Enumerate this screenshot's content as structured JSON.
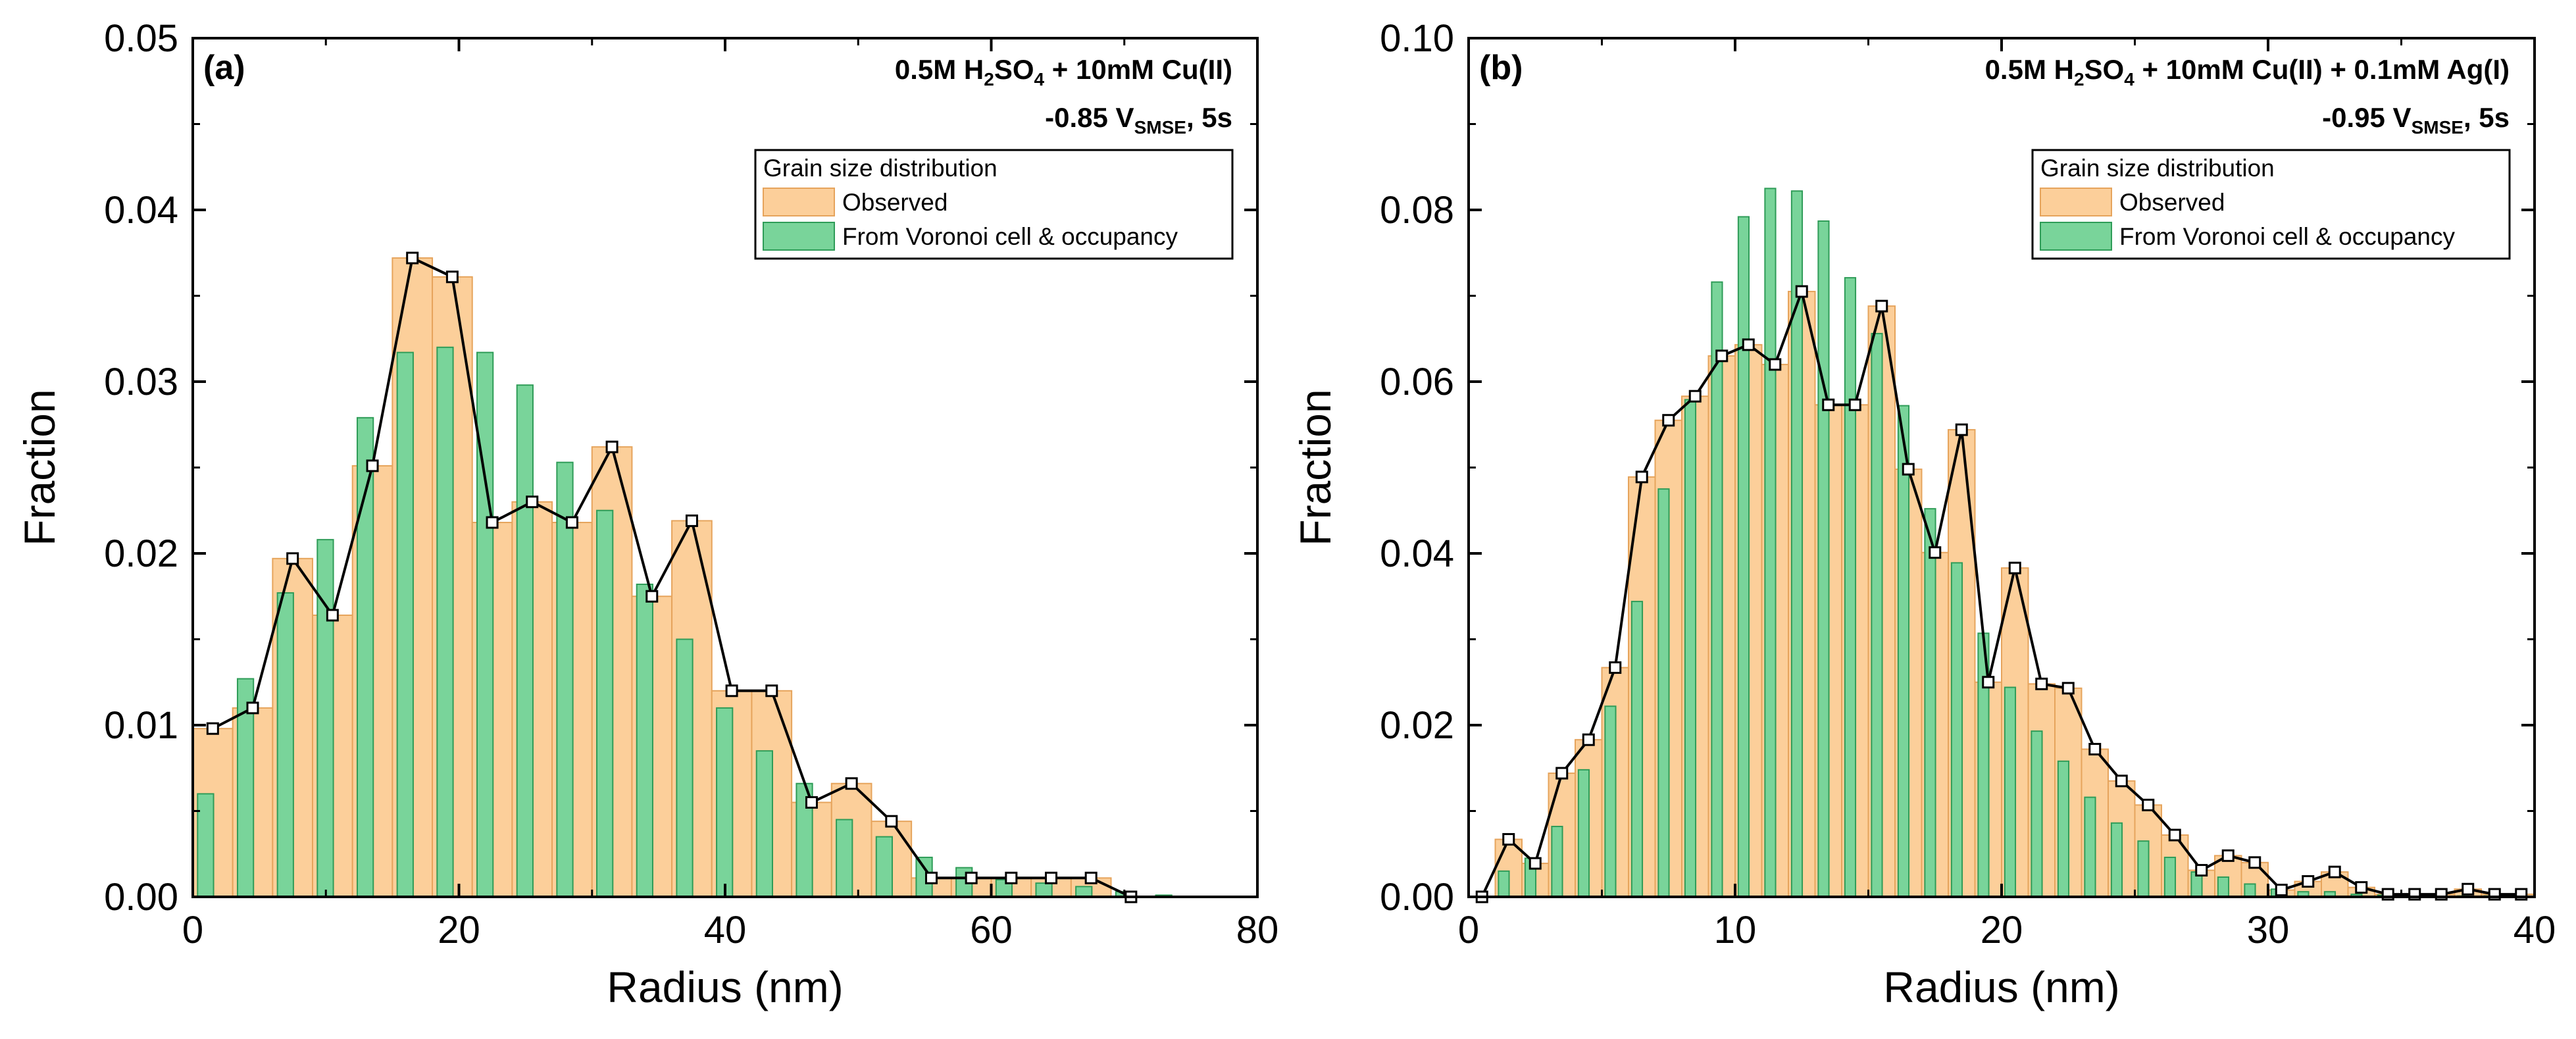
{
  "colors": {
    "observed_fill": "#fccf9a",
    "observed_edge": "#e6a45c",
    "voronoi_fill": "#79d49a",
    "voronoi_edge": "#2f9c58",
    "line": "#000000",
    "marker_fill": "#ffffff"
  },
  "chart_data": [
    {
      "type": "bar",
      "panel_label": "(a)",
      "condition": {
        "line1": {
          "a": "0.5M H",
          "b": "2",
          "c": "SO",
          "d": "4",
          "e": " + 10mM Cu(II)"
        },
        "line2": {
          "a": "-0.85 V",
          "b": "SMSE",
          "c": ", 5s"
        }
      },
      "xlabel": "Radius (nm)",
      "ylabel": "Fraction",
      "xlim": [
        0,
        80
      ],
      "ylim": [
        0,
        0.05
      ],
      "x_ticks": [
        "0",
        "20",
        "40",
        "60",
        "80"
      ],
      "y_ticks": [
        "0.00",
        "0.01",
        "0.02",
        "0.03",
        "0.04",
        "0.05"
      ],
      "bin_width": 3,
      "legend": {
        "title": "Grain size distribution",
        "entries": [
          "Observed",
          "From Voronoi cell & occupancy"
        ],
        "position": "top-right"
      },
      "series": [
        {
          "name": "Observed",
          "kind": "bar",
          "x": [
            1.5,
            4.5,
            7.5,
            10.5,
            13.5,
            16.5,
            19.5,
            22.5,
            25.5,
            28.5,
            31.5,
            34.5,
            37.5,
            40.5,
            43.5,
            46.5,
            49.5,
            52.5,
            55.5,
            58.5,
            61.5,
            64.5,
            67.5,
            70.5
          ],
          "values": [
            0.0098,
            0.011,
            0.0197,
            0.0164,
            0.0251,
            0.0372,
            0.0361,
            0.0218,
            0.023,
            0.0218,
            0.0262,
            0.0175,
            0.0219,
            0.012,
            0.012,
            0.0055,
            0.0066,
            0.0044,
            0.0011,
            0.0011,
            0.0011,
            0.0011,
            0.0011,
            0.0
          ]
        },
        {
          "name": "From Voronoi cell & occupancy",
          "kind": "bar",
          "x": [
            1.5,
            4.5,
            7.5,
            10.5,
            13.5,
            16.5,
            19.5,
            22.5,
            25.5,
            28.5,
            31.5,
            34.5,
            37.5,
            40.5,
            43.5,
            46.5,
            49.5,
            52.5,
            55.5,
            58.5,
            61.5,
            64.5,
            67.5,
            70.5,
            73.5
          ],
          "values": [
            0.006,
            0.0127,
            0.0177,
            0.0208,
            0.0279,
            0.0317,
            0.032,
            0.0317,
            0.0298,
            0.0253,
            0.0225,
            0.0182,
            0.015,
            0.011,
            0.0085,
            0.0066,
            0.0045,
            0.0035,
            0.0023,
            0.0017,
            0.001,
            0.0008,
            0.0006,
            0.0003,
            0.0001
          ]
        }
      ]
    },
    {
      "type": "bar",
      "panel_label": "(b)",
      "condition": {
        "line1": {
          "a": "0.5M H",
          "b": "2",
          "c": "SO",
          "d": "4",
          "e": " + 10mM Cu(II) + 0.1mM Ag(I)"
        },
        "line2": {
          "a": "-0.95 V",
          "b": "SMSE",
          "c": ", 5s"
        }
      },
      "xlabel": "Radius (nm)",
      "ylabel": "Fraction",
      "xlim": [
        0,
        40
      ],
      "ylim": [
        0,
        0.1
      ],
      "x_ticks": [
        "0",
        "10",
        "20",
        "30",
        "40"
      ],
      "y_ticks": [
        "0.00",
        "0.02",
        "0.04",
        "0.06",
        "0.08",
        "0.10"
      ],
      "bin_width": 1,
      "legend": {
        "title": "Grain size distribution",
        "entries": [
          "Observed",
          "From Voronoi cell & occupancy"
        ],
        "position": "top-right"
      },
      "series": [
        {
          "name": "Observed",
          "kind": "bar",
          "x": [
            0.5,
            1.5,
            2.5,
            3.5,
            4.5,
            5.5,
            6.5,
            7.5,
            8.5,
            9.5,
            10.5,
            11.5,
            12.5,
            13.5,
            14.5,
            15.5,
            16.5,
            17.5,
            18.5,
            19.5,
            20.5,
            21.5,
            22.5,
            23.5,
            24.5,
            25.5,
            26.5,
            27.5,
            28.5,
            29.5,
            30.5,
            31.5,
            32.5,
            33.5,
            34.5,
            35.5,
            36.5,
            37.5,
            38.5,
            39.5
          ],
          "values": [
            0.0,
            0.0067,
            0.0039,
            0.0144,
            0.0183,
            0.0267,
            0.0489,
            0.0555,
            0.0583,
            0.063,
            0.0643,
            0.062,
            0.0705,
            0.0573,
            0.0573,
            0.0688,
            0.0498,
            0.0401,
            0.0544,
            0.025,
            0.0383,
            0.0248,
            0.0243,
            0.0172,
            0.0135,
            0.0107,
            0.0072,
            0.0031,
            0.0048,
            0.004,
            0.0008,
            0.0018,
            0.0029,
            0.0011,
            0.0003,
            0.0003,
            0.0003,
            0.0009,
            0.0003,
            0.0003
          ]
        },
        {
          "name": "From Voronoi cell & occupancy",
          "kind": "bar",
          "x": [
            0.5,
            1.5,
            2.5,
            3.5,
            4.5,
            5.5,
            6.5,
            7.5,
            8.5,
            9.5,
            10.5,
            11.5,
            12.5,
            13.5,
            14.5,
            15.5,
            16.5,
            17.5,
            18.5,
            19.5,
            20.5,
            21.5,
            22.5,
            23.5,
            24.5,
            25.5,
            26.5,
            27.5,
            28.5,
            29.5,
            30.5,
            31.5,
            32.5,
            33.5,
            34.5,
            35.5,
            36.5,
            37.5,
            38.5,
            39.5
          ],
          "values": [
            0.0,
            0.003,
            0.0045,
            0.0082,
            0.0148,
            0.0222,
            0.0344,
            0.0475,
            0.0579,
            0.0716,
            0.0792,
            0.0825,
            0.0822,
            0.0787,
            0.0721,
            0.0656,
            0.0572,
            0.0452,
            0.0389,
            0.0307,
            0.0244,
            0.0193,
            0.0158,
            0.0116,
            0.0086,
            0.0065,
            0.0046,
            0.0029,
            0.0023,
            0.0015,
            0.0009,
            0.0006,
            0.0006,
            0.0003,
            0.0002,
            0.0002,
            0.0001,
            0.0001,
            0.0001,
            0.0001
          ]
        },
        {
          "name": "Observed",
          "kind": "line",
          "x": [
            0.5,
            1.5,
            2.5,
            3.5,
            4.5,
            5.5,
            6.5,
            7.5,
            8.5,
            9.5,
            10.5,
            11.5,
            12.5,
            13.5,
            14.5,
            15.5,
            16.5,
            17.5,
            18.5,
            19.5,
            20.5,
            21.5,
            22.5,
            23.5,
            24.5,
            25.5,
            26.5,
            27.5,
            28.5,
            29.5,
            30.5,
            31.5,
            32.5,
            33.5,
            34.5,
            35.5,
            36.5,
            37.5,
            38.5,
            39.5
          ],
          "values": [
            0.0,
            0.0067,
            0.0039,
            0.0144,
            0.0183,
            0.0267,
            0.0489,
            0.0555,
            0.0583,
            0.063,
            0.0643,
            0.062,
            0.0705,
            0.0573,
            0.0573,
            0.0688,
            0.0498,
            0.0401,
            0.0544,
            0.025,
            0.0383,
            0.0248,
            0.0243,
            0.0172,
            0.0135,
            0.0107,
            0.0072,
            0.0031,
            0.0048,
            0.004,
            0.0008,
            0.0018,
            0.0029,
            0.0011,
            0.0003,
            0.0003,
            0.0003,
            0.0009,
            0.0003,
            0.0003
          ]
        }
      ],
      "line_series": {
        "x": [
          0.5,
          1.5,
          2.5,
          3.5,
          4.5,
          5.5,
          6.5,
          7.5,
          8.5,
          9.5,
          10.5,
          11.5,
          12.5,
          13.5,
          14.5,
          15.5,
          16.5,
          17.5,
          18.5,
          19.5,
          20.5,
          21.5,
          22.5,
          23.5,
          24.5,
          25.5,
          26.5,
          27.5,
          28.5,
          29.5,
          30.5,
          31.5,
          32.5,
          33.5,
          34.5,
          35.5,
          36.5,
          37.5,
          38.5,
          39.5
        ],
        "values": [
          0.0,
          0.0067,
          0.0039,
          0.0144,
          0.0183,
          0.0267,
          0.0489,
          0.0555,
          0.0583,
          0.063,
          0.0643,
          0.062,
          0.0705,
          0.0573,
          0.0573,
          0.0688,
          0.0498,
          0.0401,
          0.0544,
          0.025,
          0.0383,
          0.0248,
          0.0243,
          0.0172,
          0.0135,
          0.0107,
          0.0072,
          0.0031,
          0.0048,
          0.004,
          0.0008,
          0.0018,
          0.0029,
          0.0011,
          0.0003,
          0.0003,
          0.0003,
          0.0009,
          0.0003,
          0.0003
        ]
      }
    }
  ]
}
